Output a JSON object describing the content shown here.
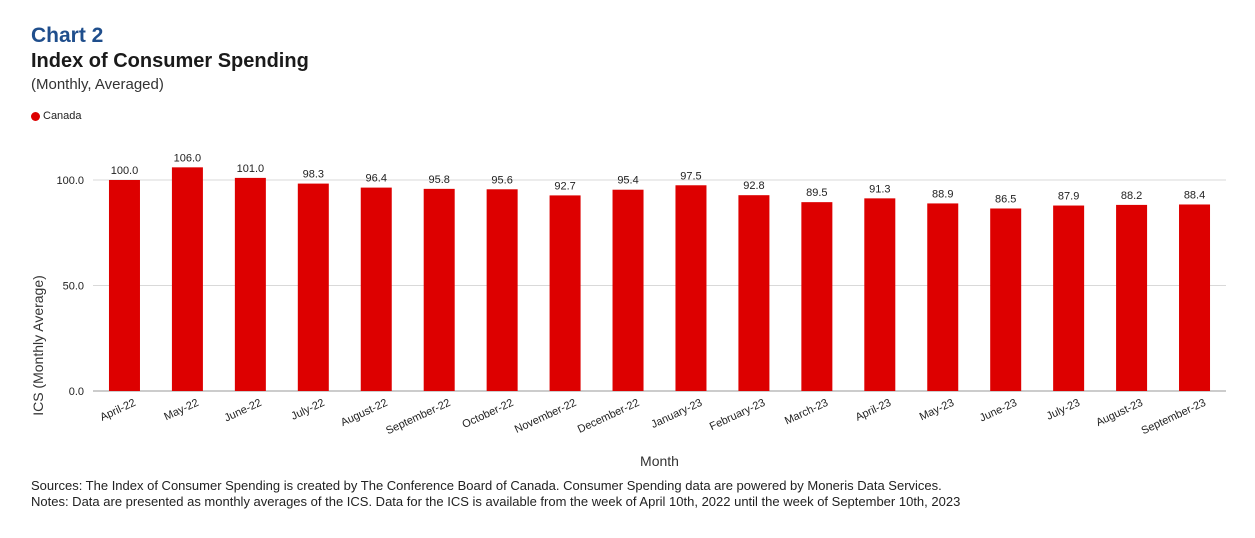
{
  "header": {
    "chart_number": "Chart 2",
    "title": "Index of Consumer Spending",
    "subtitle": "(Monthly, Averaged)"
  },
  "legend": {
    "label": "Canada",
    "color": "#dd0000"
  },
  "footer": {
    "sources": "Sources: The Index of Consumer Spending is created by The Conference Board of Canada. Consumer Spending data are powered by Moneris Data Services.",
    "notes": "Notes: Data are presented as monthly averages of the ICS. Data for the ICS is available from the week of April 10th, 2022 until the week of September 10th, 2023"
  },
  "chart_data": {
    "type": "bar",
    "title": "Index of Consumer Spending",
    "subtitle": "(Monthly, Averaged)",
    "xlabel": "Month",
    "ylabel": "ICS (Monthly Average)",
    "ylim": [
      0,
      100
    ],
    "yticks": [
      "0.0",
      "50.0",
      "100.0"
    ],
    "grid": true,
    "legend_position": "top-left",
    "categories": [
      "April-22",
      "May-22",
      "June-22",
      "July-22",
      "August-22",
      "September-22",
      "October-22",
      "November-22",
      "December-22",
      "January-23",
      "February-23",
      "March-23",
      "April-23",
      "May-23",
      "June-23",
      "July-23",
      "August-23",
      "September-23"
    ],
    "series": [
      {
        "name": "Canada",
        "color": "#dd0000",
        "values": [
          100.0,
          106.0,
          101.0,
          98.3,
          96.4,
          95.8,
          95.6,
          92.7,
          95.4,
          97.5,
          92.8,
          89.5,
          91.3,
          88.9,
          86.5,
          87.9,
          88.2,
          88.4
        ],
        "labels": [
          "100.0",
          "106.0",
          "101.0",
          "98.3",
          "96.4",
          "95.8",
          "95.6",
          "92.7",
          "95.4",
          "97.5",
          "92.8",
          "89.5",
          "91.3",
          "88.9",
          "86.5",
          "87.9",
          "88.2",
          "88.4"
        ]
      }
    ]
  }
}
